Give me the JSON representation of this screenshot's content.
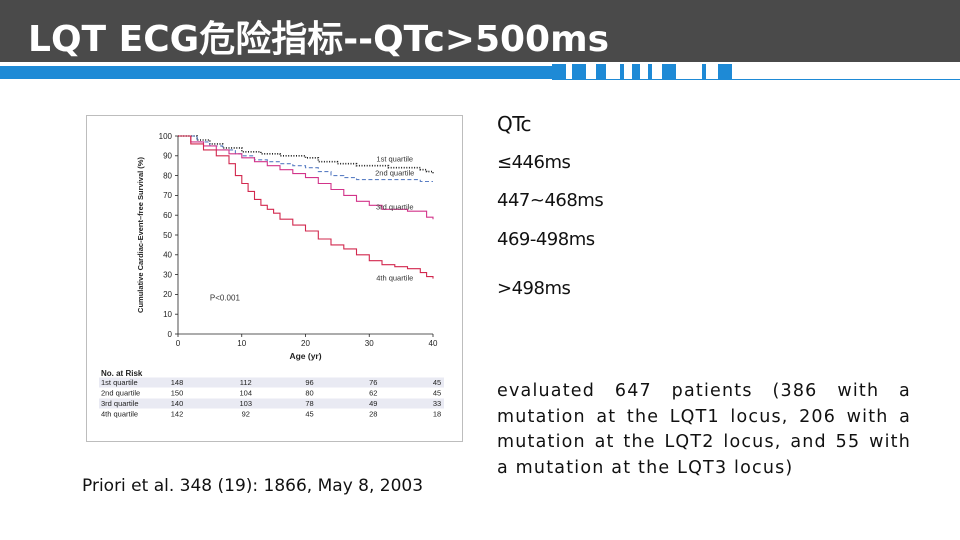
{
  "slide": {
    "title": "LQT ECG危险指标--QTc>500ms",
    "citation": "Priori et al. 348 (19): 1866, May 8, 2003",
    "qtc_heading": "QTc",
    "qtc_ranges": [
      "≤446ms",
      "447~468ms",
      "469-498ms",
      ">498ms"
    ],
    "description": "evaluated 647 patients (386 with a mutation at the LQT1 locus, 206 with a mutation at the LQT2 locus, and 55 with a mutation at the LQT3 locus)"
  },
  "colors": {
    "title_bar": "#4a4a4a",
    "accent_blue": "#1e8ad6",
    "q1": "#1a1a1a",
    "q2": "#5b7fc4",
    "q3": "#d2348a",
    "q4": "#d2284e",
    "risk_row_band": "#e9eaf3"
  },
  "chart_data": {
    "type": "line",
    "xlabel": "Age (yr)",
    "ylabel": "Cumulative Cardiac-Event–free Survival (%)",
    "xlim": [
      0,
      40
    ],
    "ylim": [
      0,
      100
    ],
    "xticks": [
      0,
      10,
      20,
      30,
      40
    ],
    "yticks": [
      0,
      10,
      20,
      30,
      40,
      50,
      60,
      70,
      80,
      90,
      100
    ],
    "annotation": "P<0.001",
    "series": [
      {
        "name": "1st quartile",
        "style": "dotted",
        "x": [
          0,
          3,
          5,
          7,
          10,
          13,
          16,
          20,
          22,
          25,
          28,
          30,
          33,
          35,
          38,
          39,
          40
        ],
        "y": [
          100,
          98,
          96,
          94,
          92,
          91,
          90,
          89,
          87,
          86,
          85,
          85,
          84,
          84,
          83,
          82,
          81
        ]
      },
      {
        "name": "2nd quartile",
        "style": "dashed",
        "x": [
          0,
          3,
          5,
          7,
          9,
          10,
          12,
          14,
          16,
          18,
          20,
          22,
          24,
          26,
          28,
          30,
          32,
          35,
          38,
          40
        ],
        "y": [
          100,
          97,
          95,
          93,
          91,
          90,
          88,
          87,
          86,
          85,
          84,
          82,
          80,
          79,
          78,
          78,
          78,
          78,
          77,
          77
        ]
      },
      {
        "name": "3rd quartile",
        "style": "solid",
        "x": [
          0,
          2,
          4,
          6,
          8,
          10,
          12,
          14,
          16,
          18,
          20,
          22,
          24,
          26,
          28,
          30,
          32,
          34,
          36,
          38,
          39,
          40
        ],
        "y": [
          100,
          97,
          95,
          93,
          91,
          89,
          87,
          85,
          83,
          81,
          79,
          76,
          73,
          70,
          67,
          65,
          63,
          63,
          62,
          62,
          59,
          58
        ]
      },
      {
        "name": "4th quartile",
        "style": "solid",
        "x": [
          0,
          2,
          4,
          6,
          8,
          9,
          10,
          11,
          12,
          13,
          14,
          15,
          16,
          18,
          20,
          22,
          24,
          26,
          28,
          30,
          32,
          34,
          36,
          38,
          39,
          40
        ],
        "y": [
          100,
          96,
          93,
          90,
          86,
          80,
          76,
          72,
          68,
          65,
          63,
          61,
          58,
          55,
          52,
          48,
          45,
          43,
          40,
          37,
          35,
          34,
          33,
          31,
          29,
          28
        ]
      }
    ],
    "at_risk": {
      "heading": "No. at Risk",
      "rows": [
        {
          "label": "1st quartile",
          "values": [
            148,
            112,
            96,
            76,
            45
          ]
        },
        {
          "label": "2nd quartile",
          "values": [
            150,
            104,
            80,
            62,
            45
          ]
        },
        {
          "label": "3rd quartile",
          "values": [
            140,
            103,
            78,
            49,
            33
          ]
        },
        {
          "label": "4th quartile",
          "values": [
            142,
            92,
            45,
            28,
            18
          ]
        }
      ]
    }
  }
}
